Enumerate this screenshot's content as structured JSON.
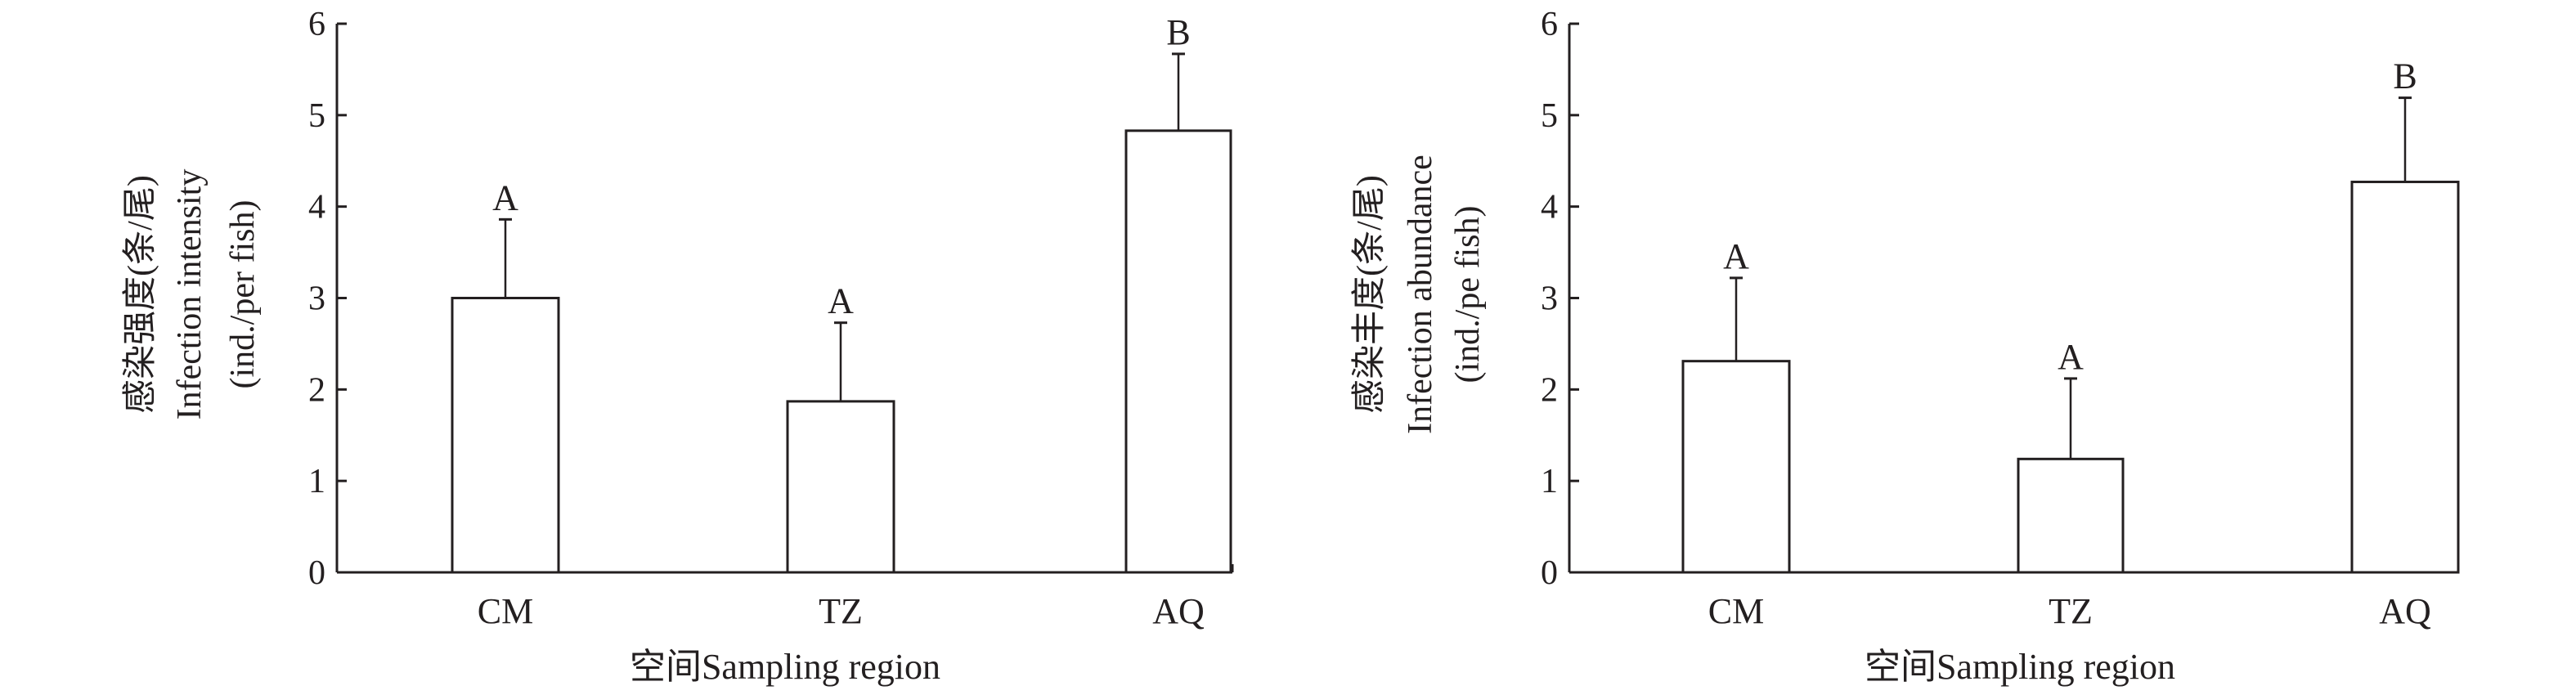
{
  "chart_data": [
    {
      "type": "bar",
      "categories": [
        "CM",
        "TZ",
        "AQ"
      ],
      "values": [
        3.0,
        1.87,
        4.83
      ],
      "error_upper": [
        3.86,
        2.73,
        5.67
      ],
      "significance_labels": [
        "A",
        "A",
        "B"
      ],
      "xlabel": "空间Sampling region",
      "ylabel_lines": [
        "感染强度(条/尾)",
        "Infection intensity",
        "(ind./per fish)"
      ],
      "ylim": [
        0,
        6
      ],
      "yticks": [
        "0",
        "1",
        "2",
        "3",
        "4",
        "5",
        "6"
      ],
      "grid": false,
      "bar_fill": "#ffffff",
      "stroke_color": "#231f20"
    },
    {
      "type": "bar",
      "categories": [
        "CM",
        "TZ",
        "AQ"
      ],
      "values": [
        2.31,
        1.24,
        4.27
      ],
      "error_upper": [
        3.22,
        2.12,
        5.19
      ],
      "significance_labels": [
        "A",
        "A",
        "B"
      ],
      "xlabel": "空间Sampling region",
      "ylabel_lines": [
        "感染丰度(条/尾)",
        "Infection abundance",
        "(ind./pe fish)"
      ],
      "ylim": [
        0,
        6
      ],
      "yticks": [
        "0",
        "1",
        "2",
        "3",
        "4",
        "5",
        "6"
      ],
      "grid": false,
      "bar_fill": "#ffffff",
      "stroke_color": "#231f20"
    }
  ]
}
